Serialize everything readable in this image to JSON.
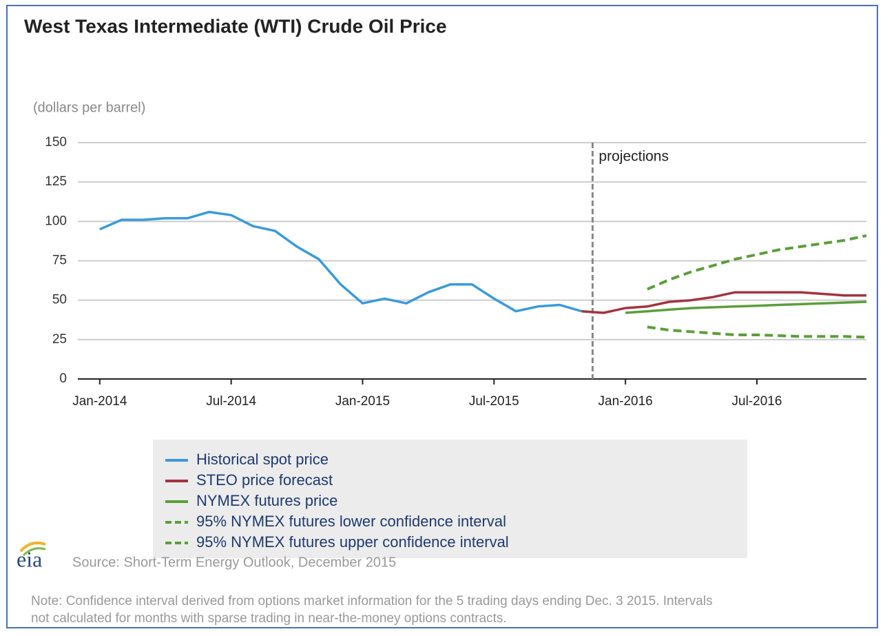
{
  "chart_data": {
    "type": "line",
    "title": "West Texas Intermediate (WTI) Crude Oil Price",
    "y_label": "(dollars per barrel)",
    "annotation": "projections",
    "source": "Source: Short-Term Energy Outlook, December 2015",
    "logo": "eia",
    "note_lines": [
      "Note: Confidence interval derived from options market information for the 5 trading days ending Dec. 3 2015. Intervals",
      "not calculated for months with sparse trading in near-the-money options contracts."
    ],
    "x": [
      "2014-01",
      "2014-02",
      "2014-03",
      "2014-04",
      "2014-05",
      "2014-06",
      "2014-07",
      "2014-08",
      "2014-09",
      "2014-10",
      "2014-11",
      "2014-12",
      "2015-01",
      "2015-02",
      "2015-03",
      "2015-04",
      "2015-05",
      "2015-06",
      "2015-07",
      "2015-08",
      "2015-09",
      "2015-10",
      "2015-11",
      "2015-12",
      "2016-01",
      "2016-02",
      "2016-03",
      "2016-04",
      "2016-05",
      "2016-06",
      "2016-07",
      "2016-08",
      "2016-09",
      "2016-10",
      "2016-11",
      "2016-12"
    ],
    "xlim": [
      "2013-12",
      "2016-12"
    ],
    "xticks": [
      {
        "value": "2014-01",
        "label": "Jan-2014"
      },
      {
        "value": "2014-07",
        "label": "Jul-2014"
      },
      {
        "value": "2015-01",
        "label": "Jan-2015"
      },
      {
        "value": "2015-07",
        "label": "Jul-2015"
      },
      {
        "value": "2016-01",
        "label": "Jan-2016"
      },
      {
        "value": "2016-07",
        "label": "Jul-2016"
      }
    ],
    "ylim": [
      0,
      150
    ],
    "yticks": [
      0,
      25,
      50,
      75,
      100,
      125,
      150
    ],
    "grid": true,
    "series": [
      {
        "name": "Historical spot price",
        "color": "#3a9ad9",
        "dash": false,
        "values": [
          95,
          101,
          101,
          102,
          102,
          106,
          104,
          97,
          94,
          84,
          76,
          60,
          48,
          51,
          48,
          55,
          60,
          60,
          51,
          43,
          46,
          47,
          43,
          null,
          null,
          null,
          null,
          null,
          null,
          null,
          null,
          null,
          null,
          null,
          null,
          null
        ]
      },
      {
        "name": "STEO price forecast",
        "color": "#a33340",
        "dash": false,
        "values": [
          null,
          null,
          null,
          null,
          null,
          null,
          null,
          null,
          null,
          null,
          null,
          null,
          null,
          null,
          null,
          null,
          null,
          null,
          null,
          null,
          null,
          null,
          43,
          42,
          45,
          46,
          49,
          50,
          52,
          55,
          55,
          55,
          55,
          54,
          53,
          53
        ]
      },
      {
        "name": "NYMEX futures price",
        "color": "#5b9e3c",
        "dash": false,
        "values": [
          null,
          null,
          null,
          null,
          null,
          null,
          null,
          null,
          null,
          null,
          null,
          null,
          null,
          null,
          null,
          null,
          null,
          null,
          null,
          null,
          null,
          null,
          null,
          null,
          42,
          43,
          44,
          45,
          45.5,
          46,
          46.5,
          47,
          47.5,
          48,
          48.5,
          49
        ]
      },
      {
        "name": "95% NYMEX futures lower confidence interval",
        "color": "#5b9e3c",
        "dash": true,
        "values": [
          null,
          null,
          null,
          null,
          null,
          null,
          null,
          null,
          null,
          null,
          null,
          null,
          null,
          null,
          null,
          null,
          null,
          null,
          null,
          null,
          null,
          null,
          null,
          null,
          null,
          33,
          31,
          30,
          29,
          28,
          28,
          27.5,
          27,
          27,
          27,
          26.5
        ]
      },
      {
        "name": "95% NYMEX futures upper confidence interval",
        "color": "#5b9e3c",
        "dash": true,
        "values": [
          null,
          null,
          null,
          null,
          null,
          null,
          null,
          null,
          null,
          null,
          null,
          null,
          null,
          null,
          null,
          null,
          null,
          null,
          null,
          null,
          null,
          null,
          null,
          null,
          null,
          57,
          63,
          68,
          72,
          76,
          79,
          82,
          84,
          86,
          88,
          91
        ]
      }
    ]
  }
}
